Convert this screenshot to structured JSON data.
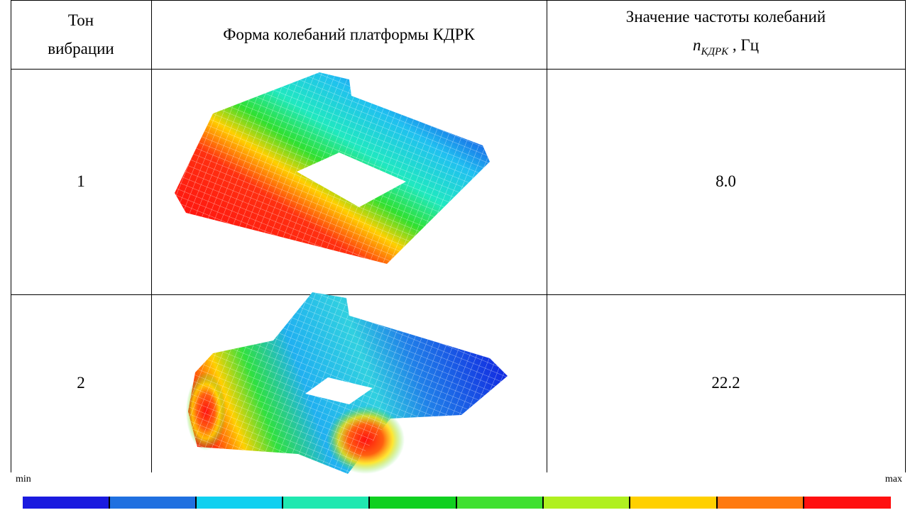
{
  "table": {
    "header": [
      {
        "lines": [
          "Тон",
          "вибрации"
        ]
      },
      "Форма колебаний платформы КДРК",
      {
        "text": "Значение частоты колебаний",
        "symbol": "n",
        "subscript": "КДРК",
        "unit": ", Гц"
      }
    ],
    "rows": [
      [
        "1",
        "8.0"
      ],
      [
        "2",
        "22.2"
      ]
    ]
  },
  "legend": {
    "min": "min",
    "max": "max"
  }
}
